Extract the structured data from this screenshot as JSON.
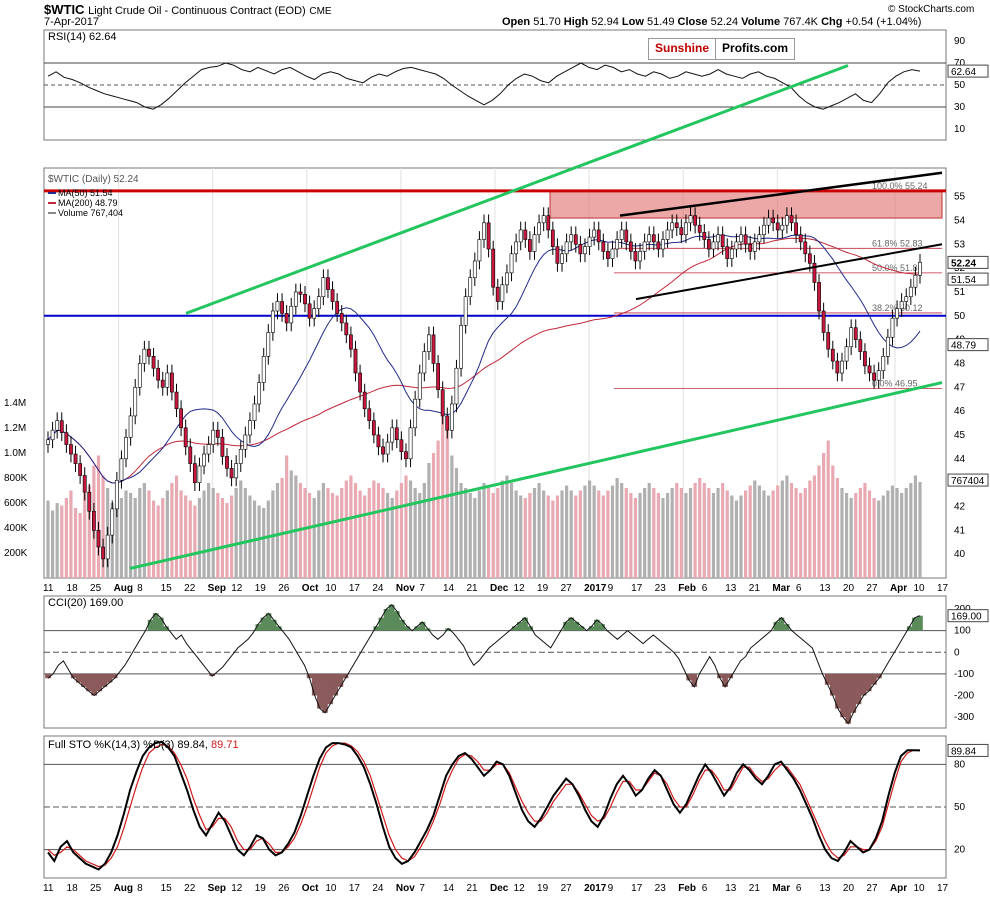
{
  "header": {
    "symbol": "$WTIC",
    "name": "Light Crude Oil - Continuous Contract (EOD)",
    "exchange": "CME",
    "date": "7-Apr-2017",
    "open_label": "Open",
    "open": "51.70",
    "high_label": "High",
    "high": "52.94",
    "low_label": "Low",
    "low": "51.49",
    "close_label": "Close",
    "close": "52.24",
    "volume_label": "Volume",
    "volume": "767.4K",
    "chg_label": "Chg",
    "chg": "+0.54 (+1.04%)",
    "credit": "© StockCharts.com",
    "logo_a": "Sunshine",
    "logo_b": "Profits.com"
  },
  "colors": {
    "green_trend": "#22c55e",
    "red_resistance": "#cc0000",
    "blue_support": "#0000cc",
    "ma50": "#1f2a8a",
    "ma200": "#c0283a",
    "up_candle": "#ffffff",
    "down_candle": "#c8173f",
    "volume_up": "#b0b0b0",
    "volume_down": "#e8a9b2",
    "stoch_d": "#d11a1a"
  },
  "chart_data": [
    {
      "panel": "rsi",
      "type": "line",
      "title": "RSI(14) 62.64",
      "yticks": [
        90,
        70,
        50,
        30,
        10
      ],
      "ylim": [
        0,
        100
      ],
      "reference_lines": [
        70,
        50,
        30
      ],
      "last_value_label": "62.64",
      "values": [
        58,
        62,
        57,
        55,
        52,
        48,
        45,
        42,
        40,
        38,
        36,
        34,
        30,
        28,
        32,
        38,
        45,
        52,
        58,
        64,
        66,
        67,
        70,
        68,
        64,
        62,
        66,
        63,
        60,
        64,
        66,
        62,
        58,
        55,
        60,
        62,
        60,
        56,
        54,
        52,
        57,
        60,
        58,
        62,
        65,
        66,
        64,
        62,
        60,
        56,
        50,
        45,
        40,
        36,
        32,
        36,
        42,
        50,
        56,
        60,
        58,
        54,
        52,
        58,
        62,
        66,
        70,
        66,
        64,
        68,
        66,
        62,
        64,
        60,
        58,
        62,
        60,
        56,
        58,
        62,
        60,
        58,
        60,
        64,
        60,
        58,
        56,
        60,
        62,
        58,
        56,
        52,
        48,
        40,
        34,
        30,
        28,
        31,
        34,
        38,
        42,
        36,
        34,
        42,
        52,
        58,
        62,
        64,
        62.64
      ]
    },
    {
      "panel": "price",
      "type": "candlestick",
      "title": "$WTIC (Daily) 52.24",
      "legend": [
        {
          "name": "MA(50) 51.54",
          "color": "#1f2a8a"
        },
        {
          "name": "MA(200) 48.79",
          "color": "#c0283a"
        },
        {
          "name": "Volume 767,404",
          "color": "#888888"
        }
      ],
      "ylim": [
        39,
        56.2
      ],
      "yticks": [
        40,
        41,
        42,
        43,
        44,
        45,
        46,
        47,
        48,
        49,
        50,
        51,
        52,
        53,
        54,
        55
      ],
      "last_price_labels": [
        "52.24",
        "51.54",
        "48.79",
        "767404"
      ],
      "fib_levels": [
        {
          "label": "100.0% 55.24",
          "value": 55.24
        },
        {
          "label": "61.8% 52.83",
          "value": 52.83
        },
        {
          "label": "50.0% 51.80",
          "value": 51.8
        },
        {
          "label": "38.2% 50.12",
          "value": 50.12
        },
        {
          "label": "0.0% 46.95",
          "value": 46.95
        }
      ],
      "resistance_line": 55.24,
      "support_line": 50,
      "close": [
        44.8,
        45.2,
        45.6,
        45.1,
        44.6,
        44.2,
        43.8,
        43.3,
        42.6,
        41.8,
        41.0,
        40.3,
        39.8,
        40.8,
        41.9,
        43.1,
        44.0,
        44.9,
        45.8,
        47.0,
        48.0,
        48.6,
        48.3,
        47.8,
        47.3,
        47.0,
        47.6,
        46.8,
        46.1,
        45.3,
        44.5,
        43.8,
        43.0,
        43.7,
        44.2,
        44.6,
        45.2,
        44.9,
        44.1,
        43.6,
        43.2,
        43.8,
        44.4,
        45.0,
        45.6,
        46.3,
        47.2,
        48.3,
        49.3,
        50.2,
        50.6,
        50.1,
        49.7,
        50.4,
        51.0,
        50.9,
        50.5,
        49.9,
        50.3,
        50.8,
        51.6,
        51.1,
        50.6,
        50.1,
        49.7,
        49.2,
        48.6,
        47.6,
        46.8,
        46.1,
        45.6,
        45.0,
        44.5,
        44.2,
        44.7,
        45.3,
        44.8,
        44.3,
        44.0,
        45.3,
        46.5,
        47.6,
        48.5,
        49.2,
        48.0,
        46.9,
        45.8,
        45.2,
        46.3,
        47.8,
        49.6,
        50.8,
        51.6,
        52.3,
        53.2,
        53.9,
        52.8,
        51.2,
        50.6,
        51.3,
        51.8,
        52.6,
        53.1,
        53.6,
        53.2,
        52.7,
        53.4,
        53.9,
        54.2,
        53.6,
        52.9,
        52.2,
        52.6,
        53.1,
        53.4,
        53.0,
        52.6,
        52.9,
        53.3,
        53.6,
        53.1,
        52.7,
        52.4,
        52.8,
        53.2,
        53.6,
        53.1,
        52.7,
        52.3,
        52.7,
        53.1,
        53.4,
        53.1,
        52.8,
        53.2,
        53.6,
        53.9,
        53.7,
        53.4,
        53.9,
        54.2,
        53.8,
        53.5,
        53.2,
        52.8,
        53.1,
        53.4,
        52.9,
        52.4,
        52.8,
        53.1,
        53.4,
        53.0,
        52.7,
        53.1,
        53.4,
        53.8,
        54.1,
        53.9,
        53.6,
        53.8,
        54.2,
        53.9,
        53.4,
        53.1,
        52.6,
        52.2,
        51.4,
        50.2,
        49.3,
        48.6,
        48.1,
        47.6,
        48.1,
        48.7,
        49.5,
        49.0,
        48.5,
        47.9,
        47.6,
        47.3,
        47.7,
        48.3,
        49.1,
        49.9,
        50.3,
        50.6,
        50.8,
        51.2,
        51.7,
        52.24
      ]
    },
    {
      "panel": "volume",
      "type": "bar",
      "yticks_label": [
        "1.4M",
        "1.2M",
        "1.0M",
        "800K",
        "600K",
        "400K",
        "200K"
      ],
      "ylim": [
        0,
        1600
      ],
      "values": [
        620,
        540,
        600,
        580,
        640,
        700,
        560,
        520,
        680,
        740,
        900,
        980,
        820,
        720,
        600,
        560,
        640,
        700,
        680,
        640,
        720,
        760,
        700,
        620,
        580,
        640,
        700,
        760,
        820,
        700,
        660,
        620,
        580,
        640,
        700,
        760,
        720,
        680,
        640,
        600,
        660,
        720,
        780,
        720,
        660,
        620,
        580,
        560,
        620,
        700,
        760,
        800,
        980,
        860,
        820,
        760,
        720,
        680,
        640,
        700,
        760,
        720,
        680,
        660,
        720,
        780,
        820,
        760,
        700,
        660,
        720,
        780,
        760,
        720,
        680,
        640,
        700,
        760,
        820,
        780,
        720,
        680,
        760,
        920,
        1000,
        1100,
        1300,
        1200,
        980,
        880,
        760,
        720,
        680,
        640,
        700,
        760,
        720,
        680,
        720,
        780,
        820,
        760,
        700,
        660,
        640,
        680,
        720,
        760,
        700,
        660,
        620,
        660,
        700,
        740,
        700,
        660,
        700,
        740,
        780,
        740,
        700,
        660,
        700,
        740,
        800,
        760,
        720,
        680,
        640,
        680,
        720,
        760,
        720,
        680,
        640,
        680,
        720,
        760,
        720,
        680,
        720,
        760,
        800,
        760,
        720,
        680,
        720,
        760,
        700,
        660,
        620,
        660,
        700,
        740,
        780,
        740,
        700,
        660,
        700,
        740,
        780,
        820,
        760,
        720,
        680,
        720,
        780,
        820,
        900,
        1000,
        1100,
        900,
        800,
        720,
        680,
        640,
        680,
        720,
        760,
        700,
        640,
        620,
        660,
        700,
        740,
        720,
        680,
        720,
        760,
        820,
        767.4
      ]
    },
    {
      "panel": "cci",
      "type": "line",
      "title": "CCI(20) 169.00",
      "yticks": [
        200,
        100,
        0,
        -100,
        -200,
        -300
      ],
      "ylim": [
        -350,
        260
      ],
      "reference_lines": [
        100,
        0,
        -100
      ],
      "last_value_label": "169.00",
      "values": [
        -120,
        -100,
        -60,
        -40,
        -80,
        -120,
        -140,
        -160,
        -180,
        -200,
        -180,
        -160,
        -140,
        -120,
        -90,
        -60,
        -20,
        20,
        60,
        100,
        150,
        180,
        160,
        120,
        90,
        60,
        80,
        40,
        10,
        -20,
        -50,
        -80,
        -110,
        -90,
        -70,
        -40,
        -10,
        20,
        40,
        60,
        90,
        130,
        160,
        180,
        150,
        120,
        90,
        60,
        20,
        -20,
        -60,
        -120,
        -200,
        -260,
        -280,
        -240,
        -200,
        -160,
        -120,
        -80,
        -40,
        0,
        40,
        80,
        120,
        160,
        200,
        220,
        190,
        150,
        120,
        100,
        120,
        140,
        110,
        80,
        60,
        80,
        110,
        90,
        60,
        30,
        -20,
        -60,
        -40,
        -10,
        20,
        40,
        60,
        80,
        100,
        120,
        140,
        160,
        120,
        80,
        60,
        40,
        20,
        60,
        100,
        140,
        160,
        140,
        120,
        100,
        120,
        150,
        130,
        100,
        80,
        60,
        80,
        100,
        80,
        60,
        40,
        60,
        80,
        60,
        40,
        20,
        0,
        -30,
        -80,
        -130,
        -160,
        -100,
        -60,
        -20,
        -60,
        -120,
        -160,
        -120,
        -80,
        -40,
        -20,
        20,
        40,
        60,
        80,
        100,
        140,
        160,
        130,
        100,
        80,
        60,
        40,
        20,
        -40,
        -100,
        -150,
        -200,
        -260,
        -300,
        -330,
        -280,
        -240,
        -200,
        -180,
        -150,
        -120,
        -80,
        -40,
        0,
        40,
        80,
        120,
        160,
        169
      ]
    },
    {
      "panel": "stochastic",
      "type": "line",
      "title": "Full STO %K(14,3) %D(3) 89.84, 89.71",
      "title_prefix": "Full STO %K(14,3) %D(3) 89.84,",
      "title_d_value": "89.71",
      "yticks": [
        80,
        50,
        20
      ],
      "ylim": [
        0,
        100
      ],
      "reference_lines": [
        80,
        50,
        20
      ],
      "last_value_label": "89.84",
      "series": [
        {
          "name": "%K",
          "color": "#000000",
          "values": [
            18,
            12,
            22,
            26,
            18,
            14,
            10,
            8,
            6,
            10,
            18,
            30,
            45,
            62,
            75,
            86,
            92,
            95,
            96,
            92,
            86,
            74,
            62,
            48,
            36,
            30,
            38,
            46,
            40,
            30,
            20,
            16,
            22,
            30,
            28,
            20,
            16,
            18,
            24,
            32,
            44,
            58,
            72,
            84,
            92,
            95,
            95,
            94,
            92,
            86,
            78,
            66,
            52,
            36,
            22,
            14,
            10,
            12,
            18,
            26,
            34,
            44,
            58,
            72,
            80,
            86,
            88,
            84,
            78,
            72,
            76,
            82,
            80,
            72,
            60,
            48,
            40,
            36,
            42,
            50,
            58,
            64,
            70,
            66,
            58,
            48,
            40,
            36,
            44,
            56,
            66,
            72,
            66,
            58,
            62,
            70,
            76,
            72,
            62,
            52,
            46,
            52,
            62,
            72,
            80,
            74,
            66,
            58,
            64,
            74,
            80,
            76,
            70,
            66,
            72,
            80,
            82,
            76,
            70,
            62,
            52,
            42,
            30,
            20,
            14,
            12,
            18,
            26,
            22,
            18,
            20,
            28,
            40,
            58,
            74,
            86,
            90,
            90,
            89.84
          ]
        },
        {
          "name": "%D",
          "color": "#d11a1a",
          "values": [
            20,
            16,
            18,
            22,
            20,
            16,
            12,
            10,
            8,
            9,
            14,
            22,
            35,
            50,
            65,
            78,
            88,
            92,
            94,
            93,
            88,
            80,
            70,
            56,
            44,
            34,
            36,
            42,
            42,
            36,
            26,
            20,
            20,
            26,
            28,
            24,
            18,
            18,
            22,
            28,
            38,
            50,
            64,
            78,
            88,
            93,
            95,
            95,
            93,
            89,
            82,
            72,
            58,
            44,
            30,
            20,
            14,
            12,
            15,
            22,
            30,
            40,
            52,
            66,
            76,
            84,
            87,
            86,
            82,
            76,
            76,
            80,
            80,
            74,
            64,
            54,
            46,
            40,
            40,
            46,
            54,
            60,
            66,
            66,
            60,
            52,
            44,
            40,
            42,
            50,
            60,
            68,
            68,
            62,
            62,
            68,
            74,
            72,
            66,
            56,
            50,
            50,
            58,
            68,
            76,
            76,
            70,
            62,
            62,
            70,
            78,
            78,
            72,
            68,
            70,
            76,
            80,
            78,
            72,
            66,
            56,
            46,
            36,
            26,
            18,
            14,
            16,
            22,
            22,
            20,
            20,
            26,
            36,
            52,
            68,
            82,
            88,
            90,
            89.71
          ]
        }
      ]
    }
  ],
  "x_axis": {
    "labels": [
      "11",
      "18",
      "25",
      "Aug",
      "8",
      "15",
      "22",
      "Sep",
      "12",
      "19",
      "26",
      "Oct",
      "10",
      "17",
      "24",
      "Nov",
      "7",
      "14",
      "21",
      "Dec",
      "12",
      "19",
      "27",
      "2017",
      "9",
      "17",
      "23",
      "Feb",
      "6",
      "13",
      "21",
      "Mar",
      "6",
      "13",
      "20",
      "27",
      "Apr",
      "10",
      "17"
    ],
    "bold_labels": [
      "Aug",
      "Sep",
      "Oct",
      "Nov",
      "Dec",
      "2017",
      "Feb",
      "Mar",
      "Apr"
    ]
  }
}
